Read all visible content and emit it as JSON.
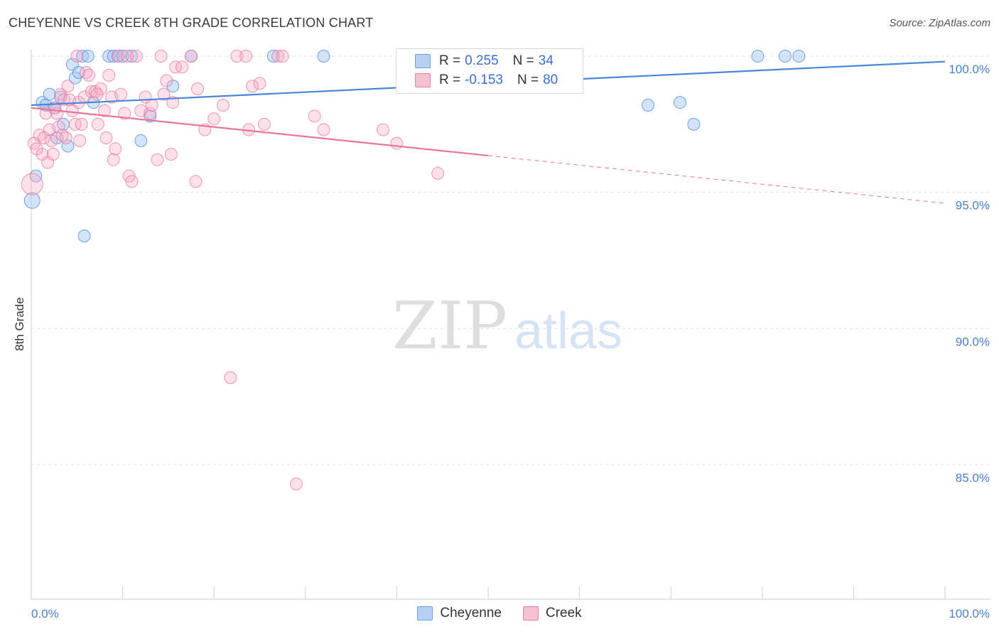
{
  "header": {
    "title": "CHEYENNE VS CREEK 8TH GRADE CORRELATION CHART",
    "source": "Source: ZipAtlas.com"
  },
  "watermark": {
    "zip": "ZIP",
    "atlas": "atlas"
  },
  "legend": {
    "r_label": "R =",
    "n_label": "N =",
    "items": [
      {
        "name": "Cheyenne",
        "r": "0.255",
        "n": "34",
        "color": "#6aa0e8",
        "fill": "#b7d0f3"
      },
      {
        "name": "Creek",
        "r": "-0.153",
        "n": "80",
        "color": "#e87ea0",
        "fill": "#f6c1d1"
      }
    ]
  },
  "chart_data": {
    "type": "scatter",
    "title": "CHEYENNE VS CREEK 8TH GRADE CORRELATION CHART",
    "xlabel": "",
    "ylabel": "8th Grade",
    "xlim": [
      0,
      100
    ],
    "ylim": [
      80.5,
      100.8
    ],
    "x_tick_labels": [
      "0.0%",
      "100.0%"
    ],
    "y_ticks": [
      100,
      95,
      90,
      85
    ],
    "y_tick_labels": [
      "100.0%",
      "95.0%",
      "90.0%",
      "85.0%"
    ],
    "series": [
      {
        "name": "Cheyenne",
        "color": "#4a86d8",
        "trend": {
          "x0": 0,
          "y0": 98.2,
          "x1": 100,
          "y1": 99.8,
          "solid_to": 100
        },
        "points": [
          [
            0.1,
            94.7
          ],
          [
            0.5,
            95.6
          ],
          [
            1.2,
            98.3
          ],
          [
            1.6,
            98.2
          ],
          [
            2.0,
            98.6
          ],
          [
            2.5,
            98.1
          ],
          [
            2.8,
            97.0
          ],
          [
            3.2,
            98.5
          ],
          [
            3.5,
            97.5
          ],
          [
            4.0,
            96.7
          ],
          [
            4.5,
            99.7
          ],
          [
            4.8,
            99.2
          ],
          [
            5.2,
            99.4
          ],
          [
            5.6,
            100
          ],
          [
            5.8,
            93.4
          ],
          [
            6.2,
            100
          ],
          [
            6.8,
            98.3
          ],
          [
            8.5,
            100
          ],
          [
            9.0,
            100
          ],
          [
            9.5,
            100
          ],
          [
            10.0,
            100
          ],
          [
            11.0,
            100
          ],
          [
            12.0,
            96.9
          ],
          [
            13.0,
            97.8
          ],
          [
            15.5,
            98.9
          ],
          [
            17.5,
            100
          ],
          [
            26.5,
            100
          ],
          [
            32.0,
            100
          ],
          [
            67.5,
            98.2
          ],
          [
            71.0,
            98.3
          ],
          [
            72.5,
            97.5
          ],
          [
            79.5,
            100
          ],
          [
            82.5,
            100
          ],
          [
            84.0,
            100
          ]
        ]
      },
      {
        "name": "Creek",
        "color": "#e8769a",
        "trend": {
          "x0": 0,
          "y0": 98.1,
          "x1": 100,
          "y1": 94.6,
          "solid_to": 50
        },
        "points": [
          [
            0.1,
            95.3
          ],
          [
            0.3,
            96.8
          ],
          [
            0.6,
            96.6
          ],
          [
            0.9,
            97.1
          ],
          [
            1.2,
            96.4
          ],
          [
            1.4,
            97.0
          ],
          [
            1.6,
            97.9
          ],
          [
            1.8,
            96.1
          ],
          [
            2.0,
            97.3
          ],
          [
            2.2,
            96.9
          ],
          [
            2.4,
            96.4
          ],
          [
            2.6,
            98.1
          ],
          [
            2.8,
            97.9
          ],
          [
            3.0,
            97.4
          ],
          [
            3.2,
            98.6
          ],
          [
            3.4,
            97.1
          ],
          [
            3.6,
            98.4
          ],
          [
            3.8,
            97.0
          ],
          [
            4.0,
            98.9
          ],
          [
            4.2,
            98.4
          ],
          [
            4.5,
            98.0
          ],
          [
            4.8,
            97.5
          ],
          [
            5.0,
            100
          ],
          [
            5.2,
            98.3
          ],
          [
            5.5,
            97.5
          ],
          [
            5.8,
            98.5
          ],
          [
            6.0,
            99.4
          ],
          [
            6.3,
            99.3
          ],
          [
            6.6,
            98.7
          ],
          [
            7.0,
            98.7
          ],
          [
            7.3,
            97.5
          ],
          [
            7.6,
            98.8
          ],
          [
            8.0,
            98.0
          ],
          [
            8.2,
            97.0
          ],
          [
            8.5,
            99.3
          ],
          [
            8.8,
            98.5
          ],
          [
            9.0,
            96.2
          ],
          [
            9.2,
            96.6
          ],
          [
            9.5,
            100
          ],
          [
            9.8,
            98.6
          ],
          [
            10.2,
            97.9
          ],
          [
            10.5,
            100
          ],
          [
            10.7,
            95.6
          ],
          [
            11.0,
            95.4
          ],
          [
            11.5,
            100
          ],
          [
            12.0,
            98.0
          ],
          [
            12.5,
            98.5
          ],
          [
            13.0,
            97.9
          ],
          [
            13.2,
            98.2
          ],
          [
            13.8,
            96.2
          ],
          [
            14.2,
            100
          ],
          [
            14.5,
            98.6
          ],
          [
            14.8,
            99.1
          ],
          [
            15.3,
            96.4
          ],
          [
            15.5,
            98.3
          ],
          [
            15.8,
            99.6
          ],
          [
            16.5,
            99.6
          ],
          [
            17.5,
            100
          ],
          [
            18.0,
            95.4
          ],
          [
            18.2,
            98.8
          ],
          [
            19.0,
            97.3
          ],
          [
            20.0,
            97.7
          ],
          [
            21.0,
            98.2
          ],
          [
            21.8,
            88.2
          ],
          [
            22.5,
            100
          ],
          [
            23.5,
            100
          ],
          [
            23.8,
            97.3
          ],
          [
            24.2,
            98.9
          ],
          [
            25.0,
            99.0
          ],
          [
            25.5,
            97.5
          ],
          [
            27.0,
            100
          ],
          [
            27.5,
            100
          ],
          [
            29.0,
            84.3
          ],
          [
            31.0,
            97.8
          ],
          [
            32.0,
            97.3
          ],
          [
            38.5,
            97.3
          ],
          [
            40.0,
            96.8
          ],
          [
            44.5,
            95.7
          ],
          [
            7.2,
            98.6
          ],
          [
            5.3,
            96.9
          ]
        ]
      }
    ]
  }
}
